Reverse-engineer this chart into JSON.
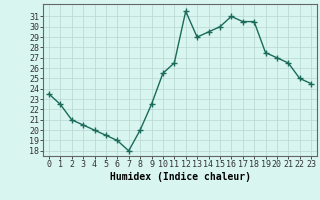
{
  "x": [
    0,
    1,
    2,
    3,
    4,
    5,
    6,
    7,
    8,
    9,
    10,
    11,
    12,
    13,
    14,
    15,
    16,
    17,
    18,
    19,
    20,
    21,
    22,
    23
  ],
  "y": [
    23.5,
    22.5,
    21.0,
    20.5,
    20.0,
    19.5,
    19.0,
    18.0,
    20.0,
    22.5,
    25.5,
    26.5,
    31.5,
    29.0,
    29.5,
    30.0,
    31.0,
    30.5,
    30.5,
    27.5,
    27.0,
    26.5,
    25.0,
    24.5
  ],
  "line_color": "#1a6b5a",
  "marker": "+",
  "marker_size": 4,
  "bg_color": "#d8f5f0",
  "grid_color": "#b8d8d2",
  "xlabel": "Humidex (Indice chaleur)",
  "xlabel_fontsize": 7,
  "ylabel_ticks": [
    18,
    19,
    20,
    21,
    22,
    23,
    24,
    25,
    26,
    27,
    28,
    29,
    30,
    31
  ],
  "xlim": [
    -0.5,
    23.5
  ],
  "ylim": [
    17.5,
    32.2
  ],
  "tick_fontsize": 6,
  "line_width": 1.0
}
